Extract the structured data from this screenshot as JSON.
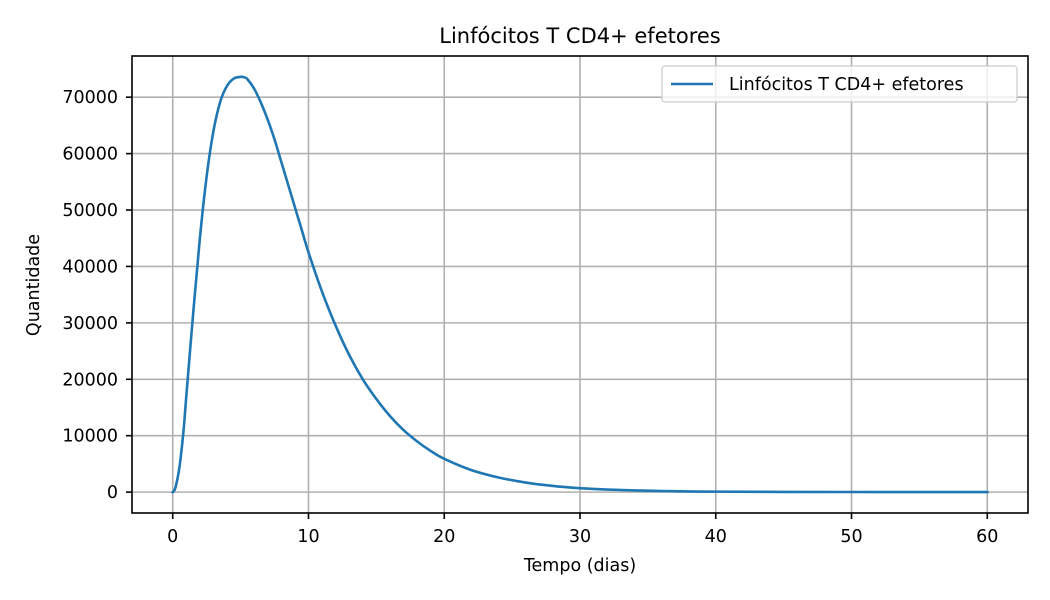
{
  "chart_data": {
    "type": "line",
    "title": "Linfócitos T CD4+ efetores",
    "xlabel": "Tempo (dias)",
    "ylabel": "Quantidade",
    "xlim": [
      -3,
      63
    ],
    "ylim": [
      -3700,
      77300
    ],
    "xticks": [
      0,
      10,
      20,
      30,
      40,
      50,
      60
    ],
    "yticks": [
      0,
      10000,
      20000,
      30000,
      40000,
      50000,
      60000,
      70000
    ],
    "grid": true,
    "legend_position": "top-right",
    "colors": {
      "series": "#1f77b4",
      "grid": "#b0b0b0",
      "axes": "#000000"
    },
    "series": [
      {
        "name": "Linfócitos T CD4+ efetores",
        "x": [
          0,
          0.2,
          0.5,
          0.8,
          1,
          1.5,
          2,
          2.5,
          3,
          3.5,
          4,
          4.5,
          5,
          5.3,
          5.5,
          6,
          6.5,
          7,
          7.5,
          8,
          8.5,
          9,
          9.5,
          10,
          11,
          12,
          13,
          14,
          15,
          16,
          17,
          18,
          19,
          20,
          22,
          24,
          26,
          28,
          30,
          32,
          35,
          38,
          40,
          45,
          50,
          55,
          60
        ],
        "y": [
          0,
          800,
          4500,
          11000,
          17000,
          31500,
          45000,
          56000,
          64000,
          69200,
          72000,
          73300,
          73600,
          73500,
          73200,
          71500,
          69000,
          66000,
          62500,
          58500,
          54500,
          50500,
          46500,
          42500,
          35500,
          29500,
          24300,
          20000,
          16500,
          13500,
          11000,
          9000,
          7300,
          5900,
          3900,
          2600,
          1700,
          1100,
          700,
          450,
          250,
          130,
          90,
          40,
          20,
          10,
          5
        ]
      }
    ]
  }
}
